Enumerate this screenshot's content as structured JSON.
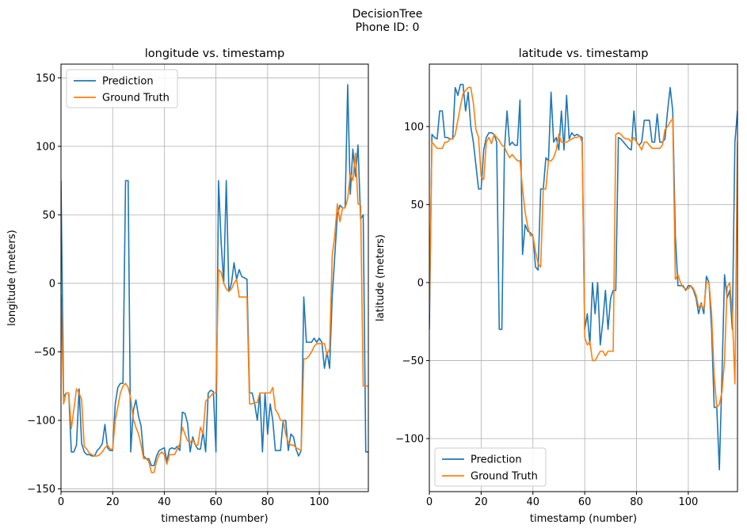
{
  "figure": {
    "title_line1": "DecisionTree",
    "title_line2": "Phone ID: 0"
  },
  "chart_data": [
    {
      "type": "line",
      "title": "longitude vs. timestamp",
      "xlabel": "timestamp (number)",
      "ylabel": "longitude (meters)",
      "xlim": [
        0,
        119
      ],
      "ylim": [
        -152,
        160
      ],
      "xticks": [
        0,
        20,
        40,
        60,
        80,
        100
      ],
      "yticks": [
        -150,
        -100,
        -50,
        0,
        50,
        100,
        150
      ],
      "grid": true,
      "legend_position": "upper-left",
      "series": [
        {
          "name": "Prediction",
          "color": "#1f77b4",
          "values": [
            75,
            -83,
            -80,
            -80,
            -123,
            -123,
            -118,
            -77,
            -117,
            -123,
            -125,
            -125,
            -126,
            -126,
            -122,
            -120,
            -117,
            -103,
            -120,
            -122,
            -122,
            -88,
            -76,
            -73,
            -73,
            75,
            75,
            -123,
            -93,
            -85,
            -97,
            -104,
            -126,
            -128,
            -128,
            -133,
            -133,
            -126,
            -122,
            -121,
            -120,
            -130,
            -121,
            -120,
            -121,
            -119,
            -122,
            -94,
            -95,
            -102,
            -123,
            -112,
            -118,
            -121,
            -121,
            -108,
            -123,
            -80,
            -78,
            -79,
            -123,
            75,
            30,
            0,
            75,
            -6,
            0,
            15,
            3,
            10,
            5,
            4,
            3,
            -80,
            -80,
            -88,
            -100,
            -80,
            -123,
            -80,
            -110,
            -88,
            -100,
            -122,
            -122,
            -122,
            -100,
            -100,
            -122,
            -110,
            -112,
            -121,
            -126,
            -122,
            -10,
            -43,
            -43,
            -43,
            -40,
            -43,
            -40,
            -43,
            -62,
            -50,
            -62,
            -10,
            20,
            50,
            57,
            55,
            55,
            145,
            65,
            98,
            78,
            101,
            47,
            50,
            -123,
            -123
          ]
        },
        {
          "name": "Ground Truth",
          "color": "#ff7f0e",
          "values": [
            -8,
            -88,
            -80,
            -80,
            -106,
            -92,
            -77,
            -80,
            -85,
            -119,
            -121,
            -124,
            -125,
            -126,
            -126,
            -125,
            -123,
            -120,
            -118,
            -121,
            -121,
            -100,
            -90,
            -80,
            -75,
            -73,
            -76,
            -84,
            -99,
            -105,
            -110,
            -118,
            -128,
            -128,
            -130,
            -138,
            -138,
            -130,
            -125,
            -123,
            -125,
            -132,
            -125,
            -125,
            -125,
            -121,
            -117,
            -105,
            -110,
            -115,
            -116,
            -114,
            -118,
            -118,
            -105,
            -110,
            -86,
            -84,
            -82,
            -80,
            -80,
            10,
            8,
            0,
            -4,
            -6,
            -4,
            0,
            3,
            -10,
            -10,
            -10,
            -10,
            -88,
            -88,
            -87,
            -87,
            -80,
            -80,
            -80,
            -80,
            -80,
            -76,
            -92,
            -95,
            -100,
            -100,
            -110,
            -116,
            -118,
            -118,
            -120,
            -121,
            -122,
            -55,
            -55,
            -53,
            -50,
            -46,
            -44,
            -44,
            -44,
            -44,
            -52,
            -48,
            20,
            35,
            58,
            45,
            55,
            55,
            62,
            80,
            75,
            95,
            58,
            57,
            -75,
            -75,
            -75
          ]
        }
      ]
    },
    {
      "type": "line",
      "title": "latitude vs. timestamp",
      "xlabel": "timestamp (number)",
      "ylabel": "latitude (meters)",
      "xlim": [
        0,
        119
      ],
      "ylim": [
        -134,
        140
      ],
      "xticks": [
        0,
        20,
        40,
        60,
        80,
        100
      ],
      "yticks": [
        -100,
        -50,
        0,
        50,
        100
      ],
      "grid": true,
      "legend_position": "lower-left",
      "series": [
        {
          "name": "Prediction",
          "color": "#1f77b4",
          "values": [
            -30,
            95,
            93,
            92,
            110,
            110,
            93,
            93,
            92,
            92,
            125,
            120,
            127,
            127,
            110,
            122,
            100,
            90,
            75,
            60,
            60,
            85,
            93,
            96,
            96,
            95,
            90,
            -30,
            -30,
            85,
            110,
            88,
            90,
            88,
            88,
            117,
            18,
            37,
            33,
            32,
            30,
            10,
            8,
            60,
            60,
            80,
            78,
            122,
            90,
            93,
            85,
            110,
            85,
            120,
            92,
            96,
            94,
            95,
            94,
            93,
            -30,
            -20,
            -40,
            0,
            -20,
            0,
            -40,
            -25,
            -5,
            -30,
            -10,
            -5,
            -5,
            93,
            92,
            90,
            88,
            86,
            85,
            110,
            90,
            88,
            90,
            104,
            104,
            104,
            90,
            90,
            108,
            90,
            90,
            92,
            110,
            125,
            110,
            30,
            -2,
            -2,
            -2,
            -5,
            -2,
            -2,
            -5,
            -10,
            -20,
            -13,
            -20,
            4,
            0,
            -30,
            -80,
            -80,
            -120,
            -60,
            5,
            -10,
            -5,
            -30,
            90,
            110,
            110
          ]
        },
        {
          "name": "Ground Truth",
          "color": "#ff7f0e",
          "values": [
            -20,
            90,
            88,
            86,
            86,
            86,
            90,
            90,
            92,
            92,
            95,
            104,
            113,
            121,
            123,
            125,
            125,
            115,
            98,
            93,
            68,
            66,
            90,
            93,
            89,
            95,
            93,
            91,
            88,
            87,
            83,
            80,
            82,
            80,
            78,
            78,
            60,
            45,
            36,
            30,
            30,
            20,
            12,
            10,
            60,
            60,
            78,
            78,
            80,
            85,
            95,
            90,
            90,
            90,
            91,
            92,
            93,
            93,
            94,
            90,
            -35,
            -40,
            -38,
            -50,
            -50,
            -47,
            -44,
            -44,
            -47,
            -44,
            -44,
            -44,
            95,
            96,
            95,
            93,
            92,
            92,
            90,
            93,
            90,
            88,
            85,
            90,
            90,
            88,
            86,
            86,
            86,
            86,
            88,
            98,
            100,
            103,
            105,
            2,
            5,
            0,
            -3,
            -4,
            -4,
            -2,
            -4,
            -8,
            -16,
            -14,
            -17,
            0,
            0,
            -20,
            -60,
            -80,
            -78,
            -70,
            -50,
            -3,
            0,
            -20,
            -65,
            90,
            90
          ]
        }
      ]
    }
  ]
}
